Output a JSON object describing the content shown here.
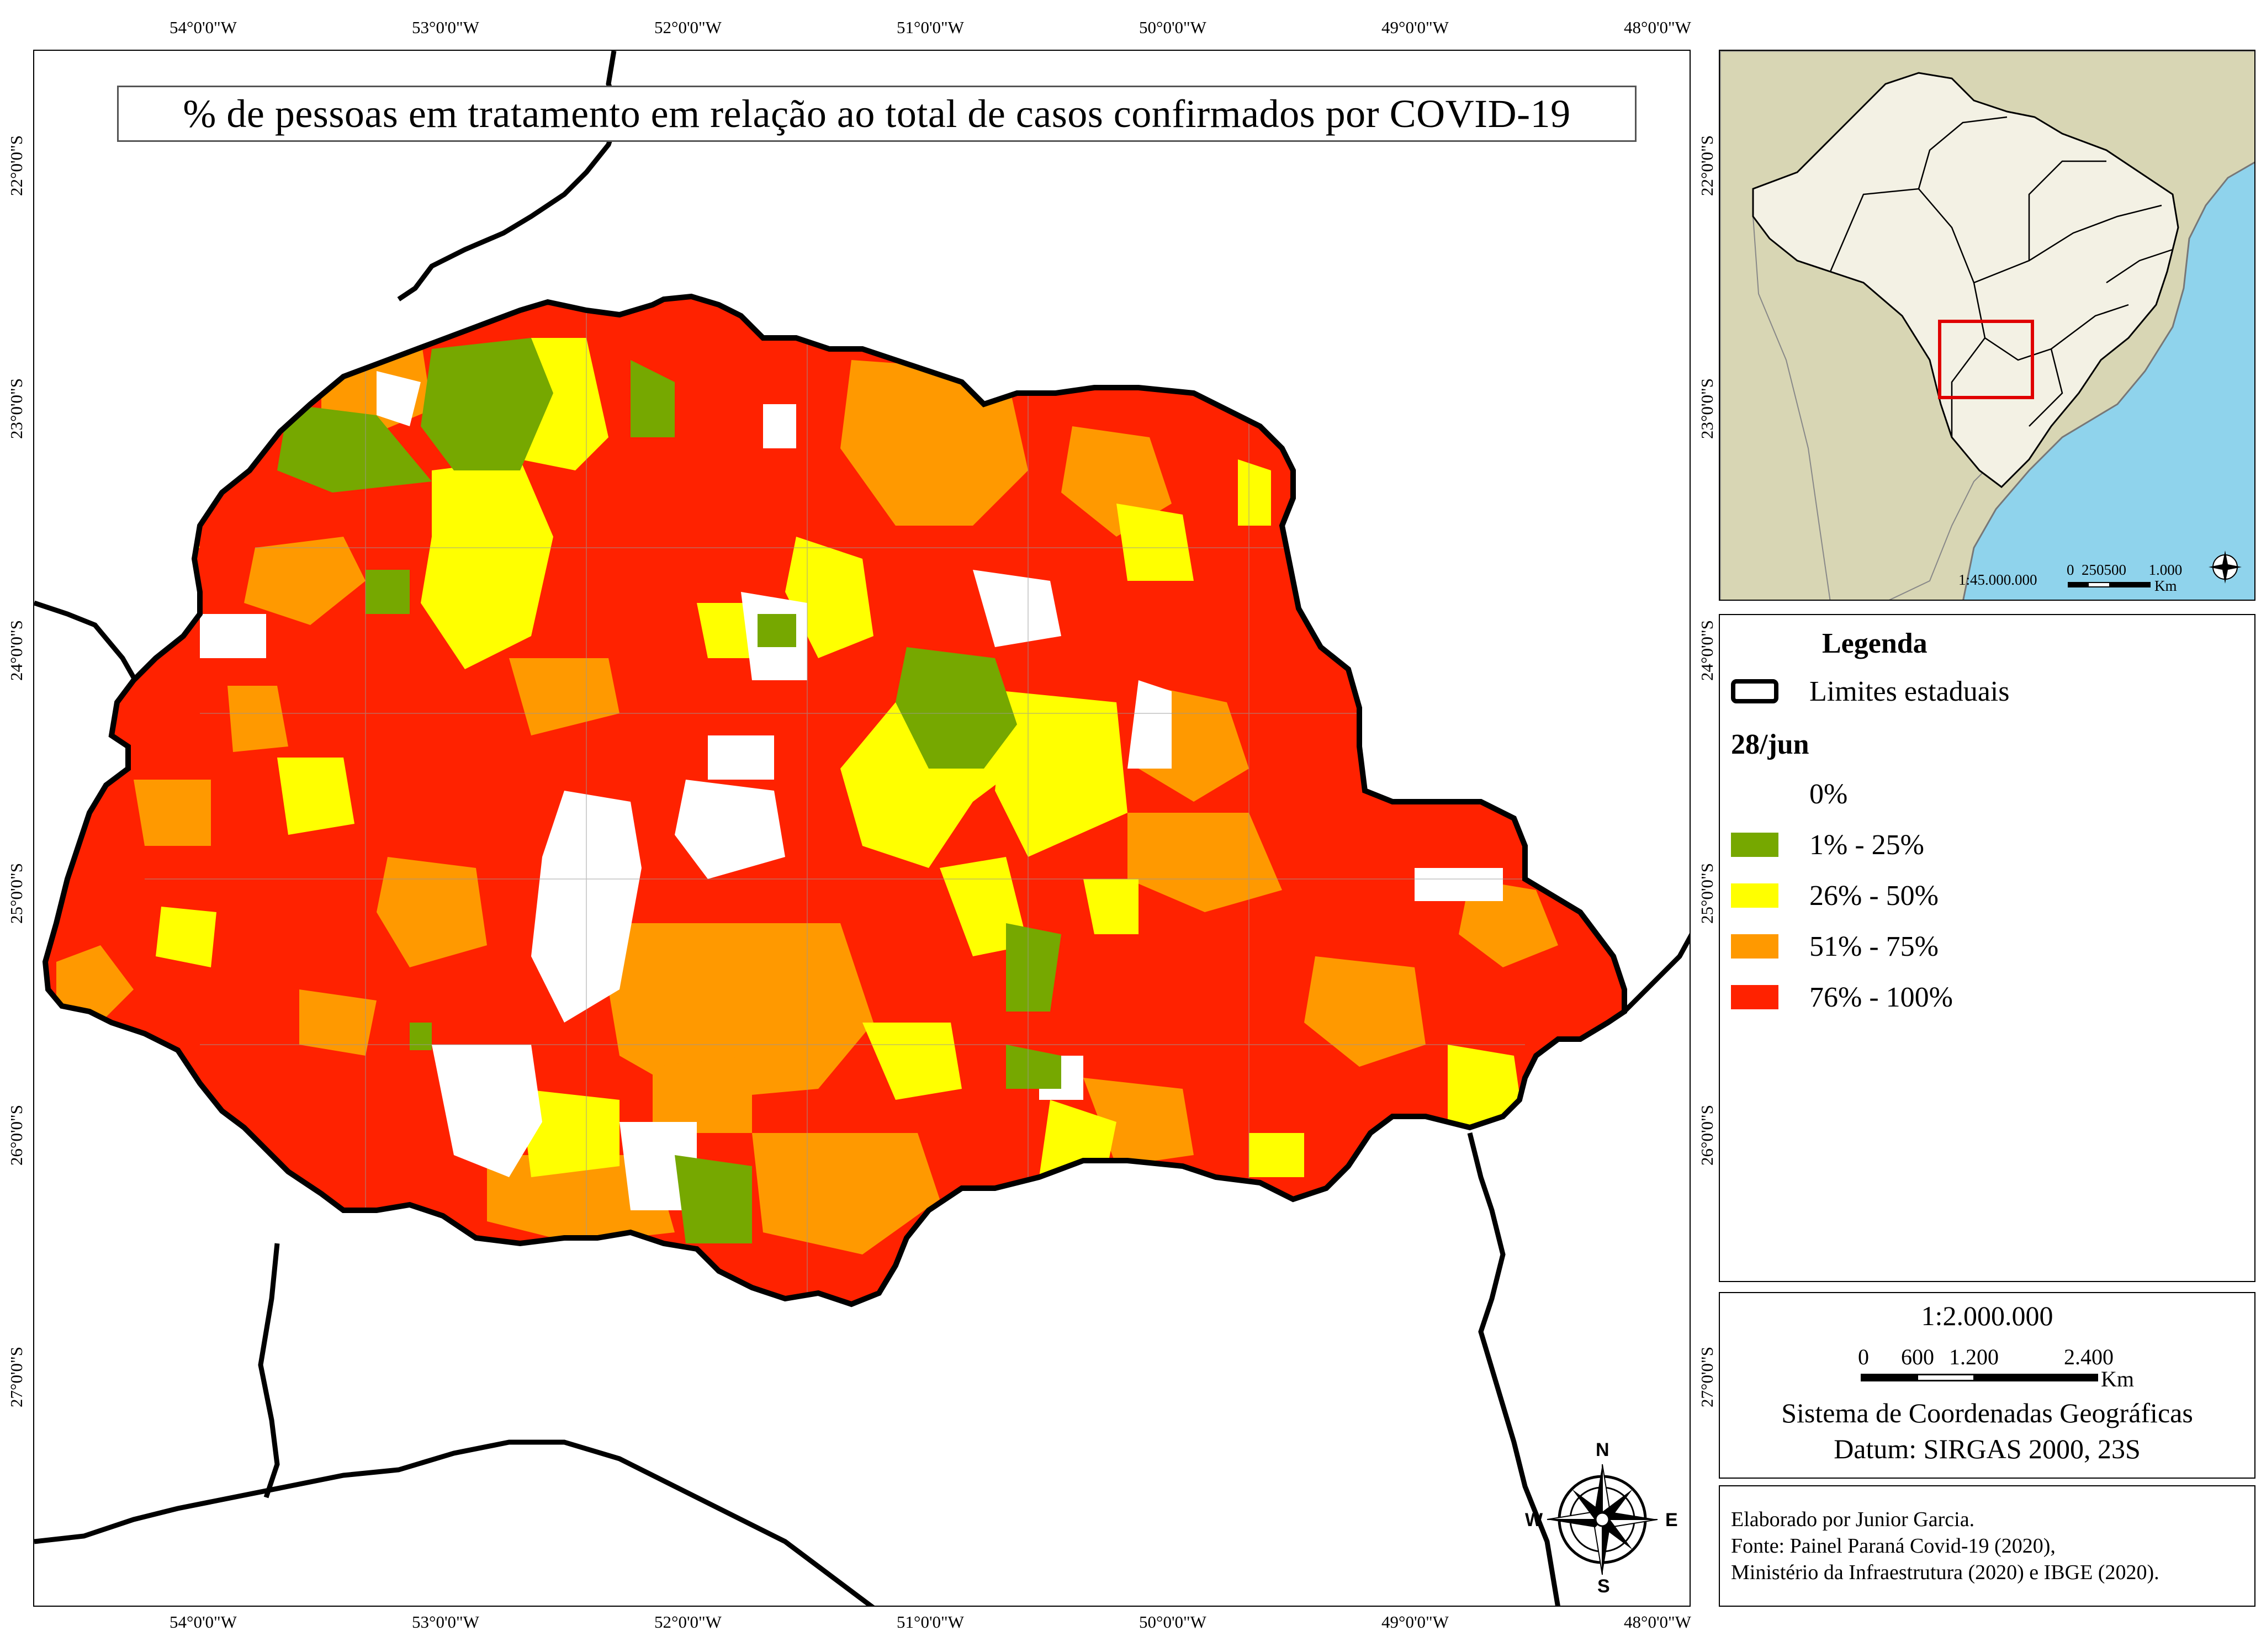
{
  "map_title": "% de pessoas em tratamento em relação ao total de casos confirmados por COVID-19",
  "lon_ticks": [
    "54°0'0\"W",
    "53°0'0\"W",
    "52°0'0\"W",
    "51°0'0\"W",
    "50°0'0\"W",
    "49°0'0\"W",
    "48°0'0\"W"
  ],
  "lat_ticks": [
    "22°0'0\"S",
    "23°0'0\"S",
    "24°0'0\"S",
    "25°0'0\"S",
    "26°0'0\"S",
    "27°0'0\"S"
  ],
  "compass": {
    "n": "N",
    "s": "S",
    "e": "E",
    "w": "W"
  },
  "inset": {
    "scale_text": "1:45.000.000",
    "scale_ticks": "0  250500      1.000",
    "unit": "Km"
  },
  "legend": {
    "title": "Legenda",
    "boundary_label": "Limites estaduais",
    "date_label": "28/jun",
    "classes": [
      {
        "label": "0%",
        "color": "#ffffff"
      },
      {
        "label": "1% - 25%",
        "color": "#76a800"
      },
      {
        "label": "26% - 50%",
        "color": "#ffff00"
      },
      {
        "label": "51% - 75%",
        "color": "#ff9900"
      },
      {
        "label": "76% - 100%",
        "color": "#ff2200"
      }
    ]
  },
  "scale": {
    "ratio": "1:2.000.000",
    "ticks": [
      "0",
      "600",
      "1.200",
      "2.400"
    ],
    "unit": "Km",
    "crs": "Sistema de Coordenadas Geográficas",
    "datum": "Datum: SIRGAS 2000, 23S"
  },
  "credits": [
    "Elaborado por Junior Garcia.",
    "Fonte: Painel Paraná Covid-19 (2020),",
    "Ministério da Infraestrutura (2020) e IBGE (2020)."
  ]
}
